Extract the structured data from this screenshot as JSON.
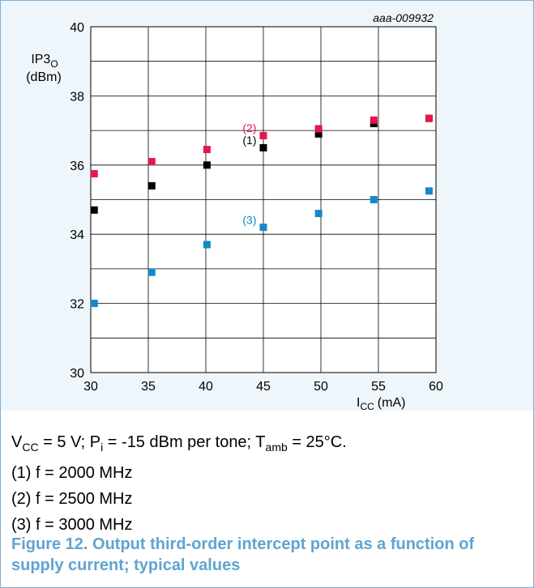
{
  "chart_data": {
    "type": "scatter",
    "image_code": "aaa-009932",
    "ylabel": {
      "main": "IP3",
      "sub": "O",
      "unit": "(dBm)"
    },
    "xlabel": {
      "main": "I",
      "sub": "CC",
      "unit": "(mA)"
    },
    "xlim": [
      30,
      60
    ],
    "ylim": [
      30,
      40
    ],
    "x_ticks": [
      "30",
      "35",
      "40",
      "45",
      "50",
      "55",
      "60"
    ],
    "y_ticks": [
      "30",
      "32",
      "34",
      "36",
      "38",
      "40"
    ],
    "grid": true,
    "series": [
      {
        "name": "(1)",
        "color": "#000000",
        "points": [
          [
            30.3,
            34.7
          ],
          [
            35.3,
            35.4
          ],
          [
            40.1,
            36.0
          ],
          [
            45.0,
            36.5
          ],
          [
            49.8,
            36.9
          ],
          [
            54.6,
            37.2
          ],
          [
            59.4,
            37.35
          ]
        ]
      },
      {
        "name": "(2)",
        "color": "#e3184d",
        "points": [
          [
            30.3,
            35.75
          ],
          [
            35.3,
            36.1
          ],
          [
            40.1,
            36.45
          ],
          [
            45.0,
            36.85
          ],
          [
            49.8,
            37.05
          ],
          [
            54.6,
            37.3
          ],
          [
            59.4,
            37.35
          ]
        ]
      },
      {
        "name": "(3)",
        "color": "#1488c8",
        "points": [
          [
            30.3,
            32.0
          ],
          [
            35.3,
            32.9
          ],
          [
            40.1,
            33.7
          ],
          [
            45.0,
            34.2
          ],
          [
            49.8,
            34.6
          ],
          [
            54.6,
            35.0
          ],
          [
            59.4,
            35.25
          ]
        ]
      }
    ],
    "annotations": [
      {
        "text": "(2)",
        "series": 1,
        "x": 43.8,
        "y": 36.95,
        "color": "#e3184d"
      },
      {
        "text": "(1)",
        "series": 0,
        "x": 43.8,
        "y": 36.6,
        "color": "#000000"
      },
      {
        "text": "(3)",
        "series": 2,
        "x": 43.8,
        "y": 34.3,
        "color": "#1488c8"
      }
    ]
  },
  "notes": {
    "conditions": {
      "vcc_label": "V",
      "vcc_sub": "CC",
      "vcc_rest": " = 5 V; P",
      "pi_sub": "i",
      "pi_rest": " = -15 dBm per tone; T",
      "tamb_sub": "amb",
      "tamb_rest": " = 25°C."
    },
    "line1": "(1) f = 2000 MHz",
    "line2": "(2) f = 2500 MHz",
    "line3": "(3) f = 3000 MHz"
  },
  "caption": "Figure 12. Output third-order intercept point as a function of supply current; typical values"
}
